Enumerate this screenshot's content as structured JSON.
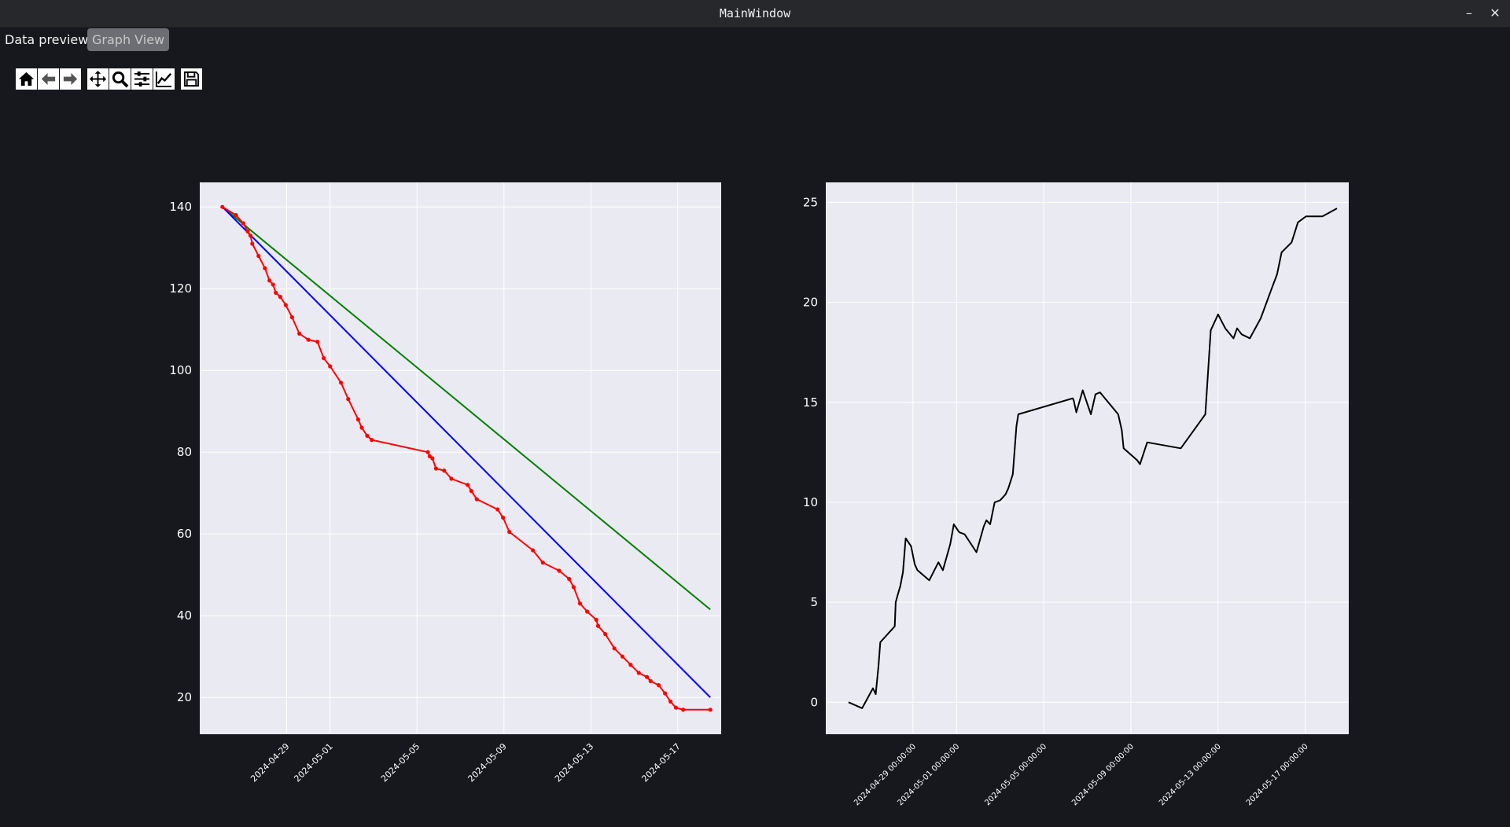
{
  "window": {
    "title": "MainWindow",
    "minimize_label": "–",
    "close_label": "✕"
  },
  "tabs": [
    {
      "label": "Data preview",
      "active": false
    },
    {
      "label": "Graph View",
      "active": true
    }
  ],
  "toolbar": [
    {
      "name": "home",
      "icon": "home-icon"
    },
    {
      "name": "back",
      "icon": "arrow-left-icon"
    },
    {
      "name": "forward",
      "icon": "arrow-right-icon"
    },
    {
      "name": "pan",
      "icon": "move-icon"
    },
    {
      "name": "zoom",
      "icon": "zoom-icon"
    },
    {
      "name": "subplots",
      "icon": "sliders-icon"
    },
    {
      "name": "customize",
      "icon": "line-chart-icon"
    },
    {
      "name": "save",
      "icon": "save-icon"
    }
  ],
  "colors": {
    "background": "#16181d",
    "plot_bg": "#eaeaf2",
    "grid": "#ffffff",
    "red": "#ff0000",
    "blue": "#0000ff",
    "green": "#008000",
    "black": "#000000"
  },
  "chart_data": [
    {
      "type": "line",
      "title": "",
      "xlabel": "",
      "ylabel": "",
      "x_type": "date",
      "xlim": [
        "2024-04-25T00:00",
        "2024-05-19T00:00"
      ],
      "ylim": [
        11,
        146
      ],
      "grid": true,
      "x_ticks": [
        "2024-04-29",
        "2024-05-01",
        "2024-05-05",
        "2024-05-09",
        "2024-05-13",
        "2024-05-17"
      ],
      "y_ticks": [
        20,
        40,
        60,
        80,
        100,
        120,
        140
      ],
      "series": [
        {
          "color": "#008000",
          "marker": false,
          "x": [
            "2024-04-26T01:00",
            "2024-05-18T12:00"
          ],
          "y": [
            140,
            41.5
          ]
        },
        {
          "color": "#0000ff",
          "marker": false,
          "x": [
            "2024-04-26T01:00",
            "2024-05-18T12:00"
          ],
          "y": [
            140,
            20
          ]
        },
        {
          "color": "#ff0000",
          "marker": true,
          "x": [
            "2024-04-26T01:00",
            "2024-04-26T16:00",
            "2024-04-27T00:00",
            "2024-04-27T05:00",
            "2024-04-27T08:00",
            "2024-04-27T10:00",
            "2024-04-27T17:00",
            "2024-04-28T00:00",
            "2024-04-28T05:00",
            "2024-04-28T09:00",
            "2024-04-28T12:00",
            "2024-04-28T17:00",
            "2024-04-28T23:00",
            "2024-04-29T06:00",
            "2024-04-29T14:00",
            "2024-04-30T00:00",
            "2024-04-30T10:00",
            "2024-04-30T17:00",
            "2024-05-01T00:00",
            "2024-05-01T12:00",
            "2024-05-01T20:00",
            "2024-05-02T07:00",
            "2024-05-02T11:00",
            "2024-05-02T17:00",
            "2024-05-02T22:00",
            "2024-05-05T12:00",
            "2024-05-05T14:00",
            "2024-05-05T17:00",
            "2024-05-05T21:00",
            "2024-05-06T06:00",
            "2024-05-06T14:00",
            "2024-05-07T08:00",
            "2024-05-07T12:00",
            "2024-05-07T18:00",
            "2024-05-08T17:00",
            "2024-05-08T23:00",
            "2024-05-09T06:00",
            "2024-05-10T08:00",
            "2024-05-10T19:00",
            "2024-05-11T13:00",
            "2024-05-12T00:00",
            "2024-05-12T05:00",
            "2024-05-12T12:00",
            "2024-05-12T20:00",
            "2024-05-13T06:00",
            "2024-05-13T08:00",
            "2024-05-13T16:00",
            "2024-05-14T02:00",
            "2024-05-14T11:00",
            "2024-05-14T20:00",
            "2024-05-15T05:00",
            "2024-05-15T14:00",
            "2024-05-15T18:00",
            "2024-05-16T03:00",
            "2024-05-16T10:00",
            "2024-05-16T16:00",
            "2024-05-16T22:00",
            "2024-05-17T06:00",
            "2024-05-18T12:00"
          ],
          "y": [
            140,
            138,
            136,
            134,
            133,
            131,
            128,
            125,
            122,
            121,
            119,
            118,
            116,
            113,
            109,
            107.5,
            107,
            103,
            101,
            97,
            93,
            88,
            86,
            84,
            83,
            80,
            79,
            78.5,
            76,
            75.5,
            73.5,
            72,
            70.5,
            68.5,
            66,
            64,
            60.5,
            56,
            53,
            51,
            49,
            47,
            43,
            41,
            39,
            37.5,
            35.5,
            32,
            30,
            28,
            26,
            25,
            24,
            23,
            21,
            19,
            17.5,
            17,
            17
          ]
        }
      ]
    },
    {
      "type": "line",
      "title": "",
      "xlabel": "",
      "ylabel": "",
      "x_type": "date",
      "xlim": [
        "2024-04-25T00:00",
        "2024-05-19T00:00"
      ],
      "ylim": [
        -1.6,
        26
      ],
      "grid": true,
      "x_ticks": [
        "2024-04-29 00:00:00",
        "2024-05-01 00:00:00",
        "2024-05-05 00:00:00",
        "2024-05-09 00:00:00",
        "2024-05-13 00:00:00",
        "2024-05-17 00:00:00"
      ],
      "y_ticks": [
        0,
        5,
        10,
        15,
        20,
        25
      ],
      "series": [
        {
          "color": "#000000",
          "marker": false,
          "x": [
            "2024-04-26T01:00",
            "2024-04-26T16:00",
            "2024-04-27T04:00",
            "2024-04-27T07:00",
            "2024-04-27T10:00",
            "2024-04-27T12:00",
            "2024-04-28T04:00",
            "2024-04-28T05:00",
            "2024-04-28T08:00",
            "2024-04-28T10:00",
            "2024-04-28T13:00",
            "2024-04-28T16:00",
            "2024-04-28T22:00",
            "2024-04-29T02:00",
            "2024-04-29T05:00",
            "2024-04-29T18:00",
            "2024-04-30T04:00",
            "2024-04-30T09:00",
            "2024-04-30T17:00",
            "2024-04-30T21:00",
            "2024-05-01T03:00",
            "2024-05-01T09:00",
            "2024-05-01T22:00",
            "2024-05-02T06:00",
            "2024-05-02T09:00",
            "2024-05-02T13:00",
            "2024-05-02T18:00",
            "2024-05-03T00:00",
            "2024-05-03T06:00",
            "2024-05-03T09:00",
            "2024-05-03T14:00",
            "2024-05-03T18:00",
            "2024-05-03T20:00",
            "2024-05-06T08:00",
            "2024-05-06T09:00",
            "2024-05-06T12:00",
            "2024-05-06T19:00",
            "2024-05-07T04:00",
            "2024-05-07T09:00",
            "2024-05-07T14:00",
            "2024-05-08T10:00",
            "2024-05-08T14:00",
            "2024-05-08T16:00",
            "2024-05-09T07:00",
            "2024-05-09T10:00",
            "2024-05-09T18:00",
            "2024-05-11T07:00",
            "2024-05-12T10:00",
            "2024-05-12T16:00",
            "2024-05-13T00:00",
            "2024-05-13T08:00",
            "2024-05-13T17:00",
            "2024-05-13T21:00",
            "2024-05-14T02:00",
            "2024-05-14T11:00",
            "2024-05-14T23:00",
            "2024-05-15T12:00",
            "2024-05-15T17:00",
            "2024-05-15T22:00",
            "2024-05-16T09:00",
            "2024-05-16T16:00",
            "2024-05-17T01:00",
            "2024-05-17T19:00",
            "2024-05-18T11:00"
          ],
          "y": [
            0,
            -0.3,
            0.7,
            0.4,
            1.8,
            3,
            3.8,
            5,
            5.5,
            5.8,
            6.5,
            8.2,
            7.8,
            6.9,
            6.6,
            6.1,
            7,
            6.6,
            7.9,
            8.9,
            8.5,
            8.4,
            7.5,
            8.8,
            9.1,
            8.9,
            10,
            10.1,
            10.4,
            10.7,
            11.4,
            13.8,
            14.4,
            15.2,
            15.1,
            14.5,
            15.6,
            14.4,
            15.4,
            15.5,
            14.4,
            13.6,
            12.7,
            12.1,
            11.9,
            13.0,
            12.7,
            14.4,
            18.6,
            19.4,
            18.7,
            18.2,
            18.7,
            18.4,
            18.2,
            19.2,
            20.8,
            21.4,
            22.5,
            23,
            24,
            24.3,
            24.3,
            24.7
          ]
        }
      ]
    }
  ]
}
